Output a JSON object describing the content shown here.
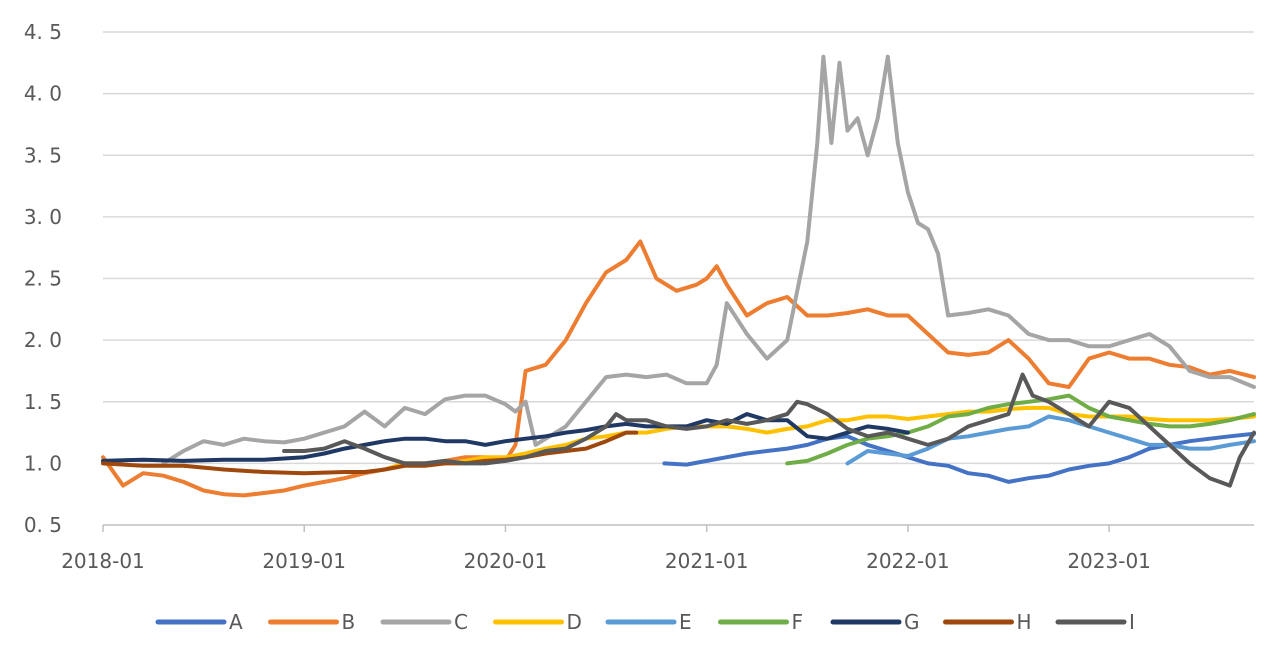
{
  "chart_data": {
    "type": "line",
    "title": "",
    "xlabel": "",
    "ylabel": "",
    "ylim": [
      0.5,
      4.5
    ],
    "y_ticks": [
      {
        "value": 4.5,
        "label": "4. 5"
      },
      {
        "value": 4.0,
        "label": "4. 0"
      },
      {
        "value": 3.5,
        "label": "3. 5"
      },
      {
        "value": 3.0,
        "label": "3. 0"
      },
      {
        "value": 2.5,
        "label": "2. 5"
      },
      {
        "value": 2.0,
        "label": "2. 0"
      },
      {
        "value": 1.5,
        "label": "1. 5"
      },
      {
        "value": 1.0,
        "label": "1. 0"
      },
      {
        "value": 0.5,
        "label": "0. 5"
      }
    ],
    "xlim": [
      2018.0,
      2023.72
    ],
    "x_ticks": [
      {
        "value": 2018.0,
        "label": "2018-01"
      },
      {
        "value": 2019.0,
        "label": "2019-01"
      },
      {
        "value": 2020.0,
        "label": "2020-01"
      },
      {
        "value": 2021.0,
        "label": "2021-01"
      },
      {
        "value": 2022.0,
        "label": "2022-01"
      },
      {
        "value": 2023.0,
        "label": "2023-01"
      }
    ],
    "grid": true,
    "legend": "bottom",
    "series": [
      {
        "name": "A",
        "color": "#4472C4",
        "x": [
          2020.79,
          2020.9,
          2021.0,
          2021.1,
          2021.2,
          2021.3,
          2021.4,
          2021.5,
          2021.6,
          2021.7,
          2021.8,
          2021.9,
          2022.0,
          2022.1,
          2022.2,
          2022.3,
          2022.4,
          2022.5,
          2022.6,
          2022.7,
          2022.8,
          2022.9,
          2023.0,
          2023.1,
          2023.2,
          2023.3,
          2023.4,
          2023.5,
          2023.6,
          2023.72
        ],
        "values": [
          1.0,
          0.99,
          1.02,
          1.05,
          1.08,
          1.1,
          1.12,
          1.15,
          1.2,
          1.22,
          1.15,
          1.1,
          1.05,
          1.0,
          0.98,
          0.92,
          0.9,
          0.85,
          0.88,
          0.9,
          0.95,
          0.98,
          1.0,
          1.05,
          1.12,
          1.15,
          1.18,
          1.2,
          1.22,
          1.24
        ]
      },
      {
        "name": "B",
        "color": "#ED7D31",
        "x": [
          2018.0,
          2018.1,
          2018.2,
          2018.3,
          2018.4,
          2018.5,
          2018.6,
          2018.7,
          2018.8,
          2018.9,
          2019.0,
          2019.1,
          2019.2,
          2019.3,
          2019.4,
          2019.5,
          2019.6,
          2019.7,
          2019.8,
          2019.9,
          2020.0,
          2020.05,
          2020.1,
          2020.2,
          2020.3,
          2020.4,
          2020.5,
          2020.6,
          2020.67,
          2020.75,
          2020.85,
          2020.95,
          2021.0,
          2021.05,
          2021.1,
          2021.2,
          2021.3,
          2021.4,
          2021.5,
          2021.6,
          2021.7,
          2021.8,
          2021.9,
          2022.0,
          2022.1,
          2022.2,
          2022.3,
          2022.4,
          2022.5,
          2022.6,
          2022.7,
          2022.8,
          2022.9,
          2023.0,
          2023.1,
          2023.2,
          2023.3,
          2023.4,
          2023.5,
          2023.6,
          2023.72
        ],
        "values": [
          1.05,
          0.82,
          0.92,
          0.9,
          0.85,
          0.78,
          0.75,
          0.74,
          0.76,
          0.78,
          0.82,
          0.85,
          0.88,
          0.92,
          0.95,
          1.0,
          1.0,
          1.02,
          1.05,
          1.05,
          1.02,
          1.15,
          1.75,
          1.8,
          2.0,
          2.3,
          2.55,
          2.65,
          2.8,
          2.5,
          2.4,
          2.45,
          2.5,
          2.6,
          2.45,
          2.2,
          2.3,
          2.35,
          2.2,
          2.2,
          2.22,
          2.25,
          2.2,
          2.2,
          2.05,
          1.9,
          1.88,
          1.9,
          2.0,
          1.85,
          1.65,
          1.62,
          1.85,
          1.9,
          1.85,
          1.85,
          1.8,
          1.78,
          1.72,
          1.75,
          1.7
        ]
      },
      {
        "name": "C",
        "color": "#A5A5A5",
        "x": [
          2018.3,
          2018.4,
          2018.5,
          2018.6,
          2018.7,
          2018.8,
          2018.9,
          2019.0,
          2019.1,
          2019.2,
          2019.3,
          2019.4,
          2019.5,
          2019.6,
          2019.7,
          2019.8,
          2019.9,
          2020.0,
          2020.05,
          2020.1,
          2020.15,
          2020.2,
          2020.3,
          2020.4,
          2020.5,
          2020.6,
          2020.7,
          2020.8,
          2020.9,
          2021.0,
          2021.05,
          2021.1,
          2021.2,
          2021.3,
          2021.4,
          2021.5,
          2021.55,
          2021.58,
          2021.62,
          2021.66,
          2021.7,
          2021.75,
          2021.8,
          2021.85,
          2021.9,
          2021.95,
          2022.0,
          2022.05,
          2022.1,
          2022.15,
          2022.2,
          2022.3,
          2022.4,
          2022.5,
          2022.6,
          2022.7,
          2022.8,
          2022.9,
          2023.0,
          2023.1,
          2023.2,
          2023.3,
          2023.4,
          2023.5,
          2023.6,
          2023.72
        ],
        "values": [
          1.0,
          1.1,
          1.18,
          1.15,
          1.2,
          1.18,
          1.17,
          1.2,
          1.25,
          1.3,
          1.42,
          1.3,
          1.45,
          1.4,
          1.52,
          1.55,
          1.55,
          1.48,
          1.42,
          1.5,
          1.15,
          1.2,
          1.3,
          1.5,
          1.7,
          1.72,
          1.7,
          1.72,
          1.65,
          1.65,
          1.8,
          2.3,
          2.05,
          1.85,
          2.0,
          2.8,
          3.6,
          4.3,
          3.6,
          4.25,
          3.7,
          3.8,
          3.5,
          3.8,
          4.3,
          3.6,
          3.2,
          2.95,
          2.9,
          2.7,
          2.2,
          2.22,
          2.25,
          2.2,
          2.05,
          2.0,
          2.0,
          1.95,
          1.95,
          2.0,
          2.05,
          1.95,
          1.75,
          1.7,
          1.7,
          1.62
        ]
      },
      {
        "name": "D",
        "color": "#FFC000",
        "x": [
          2019.4,
          2019.5,
          2019.6,
          2019.7,
          2019.8,
          2019.9,
          2020.0,
          2020.1,
          2020.2,
          2020.3,
          2020.4,
          2020.5,
          2020.6,
          2020.7,
          2020.8,
          2020.9,
          2021.0,
          2021.1,
          2021.2,
          2021.3,
          2021.4,
          2021.5,
          2021.6,
          2021.7,
          2021.8,
          2021.9,
          2022.0,
          2022.1,
          2022.2,
          2022.3,
          2022.4,
          2022.5,
          2022.6,
          2022.7,
          2022.8,
          2022.9,
          2023.0,
          2023.1,
          2023.2,
          2023.3,
          2023.4,
          2023.5,
          2023.6,
          2023.72
        ],
        "values": [
          0.95,
          1.0,
          1.0,
          1.0,
          1.02,
          1.05,
          1.05,
          1.08,
          1.12,
          1.15,
          1.2,
          1.22,
          1.25,
          1.25,
          1.28,
          1.3,
          1.3,
          1.3,
          1.28,
          1.25,
          1.28,
          1.3,
          1.35,
          1.35,
          1.38,
          1.38,
          1.36,
          1.38,
          1.4,
          1.42,
          1.42,
          1.44,
          1.45,
          1.45,
          1.4,
          1.38,
          1.38,
          1.38,
          1.36,
          1.35,
          1.35,
          1.35,
          1.36,
          1.38
        ]
      },
      {
        "name": "E",
        "color": "#5B9BD5",
        "x": [
          2021.7,
          2021.8,
          2021.9,
          2022.0,
          2022.1,
          2022.2,
          2022.3,
          2022.4,
          2022.5,
          2022.6,
          2022.7,
          2022.8,
          2022.9,
          2023.0,
          2023.1,
          2023.2,
          2023.3,
          2023.4,
          2023.5,
          2023.6,
          2023.72
        ],
        "values": [
          1.0,
          1.1,
          1.08,
          1.06,
          1.12,
          1.2,
          1.22,
          1.25,
          1.28,
          1.3,
          1.38,
          1.35,
          1.3,
          1.25,
          1.2,
          1.15,
          1.15,
          1.12,
          1.12,
          1.15,
          1.18
        ]
      },
      {
        "name": "F",
        "color": "#70AD47",
        "x": [
          2021.4,
          2021.5,
          2021.6,
          2021.7,
          2021.8,
          2021.9,
          2022.0,
          2022.1,
          2022.2,
          2022.3,
          2022.4,
          2022.5,
          2022.6,
          2022.7,
          2022.8,
          2022.9,
          2023.0,
          2023.1,
          2023.2,
          2023.3,
          2023.4,
          2023.5,
          2023.6,
          2023.72
        ],
        "values": [
          1.0,
          1.02,
          1.08,
          1.15,
          1.2,
          1.22,
          1.25,
          1.3,
          1.38,
          1.4,
          1.45,
          1.48,
          1.5,
          1.52,
          1.55,
          1.45,
          1.38,
          1.35,
          1.32,
          1.3,
          1.3,
          1.32,
          1.35,
          1.4
        ]
      },
      {
        "name": "G",
        "color": "#1F3864",
        "x": [
          2018.0,
          2018.2,
          2018.4,
          2018.6,
          2018.8,
          2019.0,
          2019.1,
          2019.2,
          2019.3,
          2019.4,
          2019.5,
          2019.6,
          2019.7,
          2019.8,
          2019.9,
          2020.0,
          2020.1,
          2020.2,
          2020.3,
          2020.4,
          2020.5,
          2020.6,
          2020.7,
          2020.8,
          2020.9,
          2021.0,
          2021.1,
          2021.2,
          2021.3,
          2021.4,
          2021.5,
          2021.6,
          2021.7,
          2021.8,
          2021.9,
          2022.0
        ],
        "values": [
          1.02,
          1.03,
          1.02,
          1.03,
          1.03,
          1.05,
          1.08,
          1.12,
          1.15,
          1.18,
          1.2,
          1.2,
          1.18,
          1.18,
          1.15,
          1.18,
          1.2,
          1.22,
          1.25,
          1.27,
          1.3,
          1.32,
          1.3,
          1.3,
          1.3,
          1.35,
          1.32,
          1.4,
          1.35,
          1.35,
          1.22,
          1.2,
          1.25,
          1.3,
          1.28,
          1.25
        ]
      },
      {
        "name": "H",
        "color": "#9E480E",
        "x": [
          2018.0,
          2018.2,
          2018.4,
          2018.6,
          2018.8,
          2019.0,
          2019.2,
          2019.3,
          2019.4,
          2019.5,
          2019.6,
          2019.7,
          2019.8,
          2019.9,
          2020.0,
          2020.1,
          2020.2,
          2020.3,
          2020.4,
          2020.5,
          2020.6,
          2020.65
        ],
        "values": [
          1.0,
          0.98,
          0.98,
          0.95,
          0.93,
          0.92,
          0.93,
          0.93,
          0.95,
          0.98,
          0.98,
          1.0,
          1.0,
          1.02,
          1.03,
          1.05,
          1.08,
          1.1,
          1.12,
          1.18,
          1.25,
          1.25
        ]
      },
      {
        "name": "I",
        "color": "#595959",
        "x": [
          2018.9,
          2019.0,
          2019.1,
          2019.2,
          2019.3,
          2019.4,
          2019.5,
          2019.6,
          2019.7,
          2019.8,
          2019.9,
          2020.0,
          2020.1,
          2020.2,
          2020.3,
          2020.4,
          2020.5,
          2020.55,
          2020.6,
          2020.7,
          2020.8,
          2020.9,
          2021.0,
          2021.1,
          2021.2,
          2021.3,
          2021.4,
          2021.45,
          2021.5,
          2021.6,
          2021.7,
          2021.8,
          2021.9,
          2022.0,
          2022.1,
          2022.2,
          2022.3,
          2022.4,
          2022.5,
          2022.57,
          2022.62,
          2022.7,
          2022.8,
          2022.9,
          2023.0,
          2023.1,
          2023.2,
          2023.3,
          2023.4,
          2023.5,
          2023.55,
          2023.6,
          2023.65,
          2023.72
        ],
        "values": [
          1.1,
          1.1,
          1.12,
          1.18,
          1.12,
          1.05,
          1.0,
          1.0,
          1.02,
          1.0,
          1.0,
          1.02,
          1.05,
          1.1,
          1.12,
          1.2,
          1.3,
          1.4,
          1.35,
          1.35,
          1.3,
          1.28,
          1.3,
          1.35,
          1.32,
          1.35,
          1.4,
          1.5,
          1.48,
          1.4,
          1.28,
          1.22,
          1.25,
          1.2,
          1.15,
          1.2,
          1.3,
          1.35,
          1.4,
          1.72,
          1.55,
          1.5,
          1.4,
          1.3,
          1.5,
          1.45,
          1.3,
          1.15,
          1.0,
          0.88,
          0.85,
          0.82,
          1.05,
          1.25
        ]
      }
    ]
  }
}
